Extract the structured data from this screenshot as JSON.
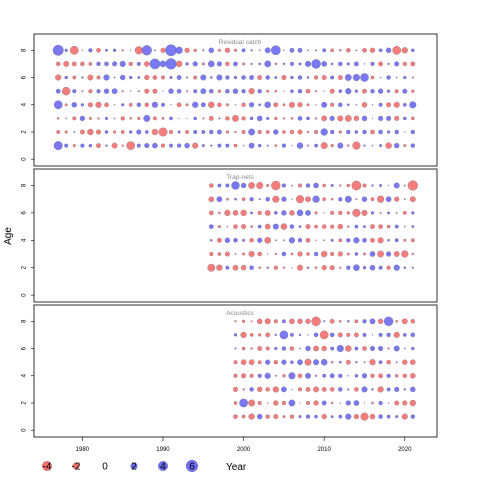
{
  "chart_data": {
    "type": "bubble-residuals",
    "xlabel": "Year",
    "ylabel": "Age",
    "x_ticks": [
      1980,
      1990,
      2000,
      2010,
      2020
    ],
    "y_ticks": [
      0,
      2,
      4,
      6,
      8
    ],
    "xlim": [
      1974,
      2024
    ],
    "ylim": [
      -0.5,
      9.2
    ],
    "colors": {
      "positive": "#6e6ef5",
      "negative": "#f57272",
      "stroke": "#555555"
    },
    "legend": {
      "values": [
        -4,
        -2,
        0,
        2,
        4,
        6
      ],
      "labels": [
        "-4",
        "-2",
        "0",
        "2",
        "4",
        "6"
      ]
    },
    "panels": [
      {
        "title": "Residual catch",
        "years": [
          1977,
          2021
        ],
        "ages": [
          1,
          2,
          3,
          4,
          5,
          6,
          7,
          8
        ],
        "seed": 11,
        "highlights": [
          {
            "year": 1977,
            "age": 8,
            "value": 4.8
          },
          {
            "year": 1977,
            "age": 1,
            "value": 3.2
          },
          {
            "year": 1977,
            "age": 4,
            "value": 3.0
          },
          {
            "year": 1979,
            "age": 8,
            "value": -3.0
          },
          {
            "year": 1978,
            "age": 5,
            "value": -2.8
          },
          {
            "year": 1987,
            "age": 8,
            "value": -2.6
          },
          {
            "year": 1988,
            "age": 8,
            "value": 4.2
          },
          {
            "year": 1989,
            "age": 7,
            "value": 4.6
          },
          {
            "year": 1991,
            "age": 8,
            "value": 5.5
          },
          {
            "year": 1991,
            "age": 7,
            "value": 5.0
          },
          {
            "year": 1990,
            "age": 2,
            "value": -3.2
          },
          {
            "year": 1986,
            "age": 1,
            "value": -3.0
          },
          {
            "year": 2004,
            "age": 8,
            "value": 3.8
          },
          {
            "year": 2009,
            "age": 7,
            "value": 3.6
          },
          {
            "year": 2015,
            "age": 6,
            "value": 2.9
          },
          {
            "year": 2019,
            "age": 8,
            "value": -3.0
          },
          {
            "year": 2014,
            "age": 1,
            "value": -2.6
          }
        ]
      },
      {
        "title": "Trap-nets",
        "years": [
          1996,
          2021
        ],
        "ages": [
          2,
          3,
          4,
          5,
          6,
          7,
          8
        ],
        "seed": 23,
        "highlights": [
          {
            "year": 2004,
            "age": 8,
            "value": -3.6
          },
          {
            "year": 2014,
            "age": 8,
            "value": -3.8
          },
          {
            "year": 2021,
            "age": 8,
            "value": -4.2
          },
          {
            "year": 1999,
            "age": 8,
            "value": 2.8
          },
          {
            "year": 2007,
            "age": 7,
            "value": -2.6
          },
          {
            "year": 2014,
            "age": 6,
            "value": -2.6
          },
          {
            "year": 1996,
            "age": 2,
            "value": -2.4
          }
        ]
      },
      {
        "title": "Acoustics",
        "years": [
          1999,
          2021
        ],
        "ages": [
          1,
          2,
          3,
          4,
          5,
          6,
          7,
          8
        ],
        "seed": 37,
        "highlights": [
          {
            "year": 2009,
            "age": 8,
            "value": -3.6
          },
          {
            "year": 2018,
            "age": 8,
            "value": 3.6
          },
          {
            "year": 2005,
            "age": 7,
            "value": 3.0
          },
          {
            "year": 2010,
            "age": 7,
            "value": -3.0
          },
          {
            "year": 2000,
            "age": 2,
            "value": 3.0
          },
          {
            "year": 2015,
            "age": 1,
            "value": -2.6
          }
        ]
      }
    ]
  }
}
